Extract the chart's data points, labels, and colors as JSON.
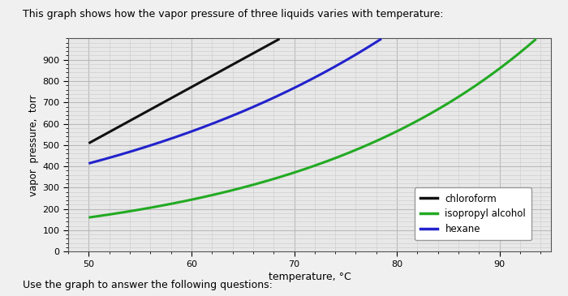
{
  "title": "This graph shows how the vapor pressure of three liquids varies with temperature:",
  "xlabel": "temperature, °C",
  "ylabel": "vapor  pressure,  torr",
  "xlim": [
    48,
    95
  ],
  "ylim": [
    0,
    1000
  ],
  "xticks": [
    50,
    60,
    70,
    80,
    90
  ],
  "yticks": [
    0,
    100,
    200,
    300,
    400,
    500,
    600,
    700,
    800,
    900
  ],
  "subtitle": "Use the graph to answer the following questions:",
  "background_color": "#e8e8e8",
  "grid_major_color": "#bbbbbb",
  "grid_minor_color": "#d0d0d0",
  "chloroform_color": "#111111",
  "isopropyl_color": "#22aa22",
  "hexane_color": "#2222cc",
  "legend_labels": [
    "chloroform",
    "isopropyl alcohol",
    "hexane"
  ],
  "chloroform_x": [
    50,
    55,
    60,
    65,
    68.5
  ],
  "chloroform_y": [
    510,
    640,
    770,
    900,
    1000
  ],
  "hexane_x": [
    50,
    55,
    60,
    65,
    70,
    75,
    78.5
  ],
  "hexane_y": [
    400,
    490,
    580,
    670,
    760,
    880,
    1000
  ],
  "isopropyl_x": [
    50,
    55,
    60,
    65,
    70,
    75,
    80,
    85,
    90
  ],
  "isopropyl_y": [
    170,
    200,
    240,
    290,
    355,
    440,
    555,
    710,
    910
  ]
}
